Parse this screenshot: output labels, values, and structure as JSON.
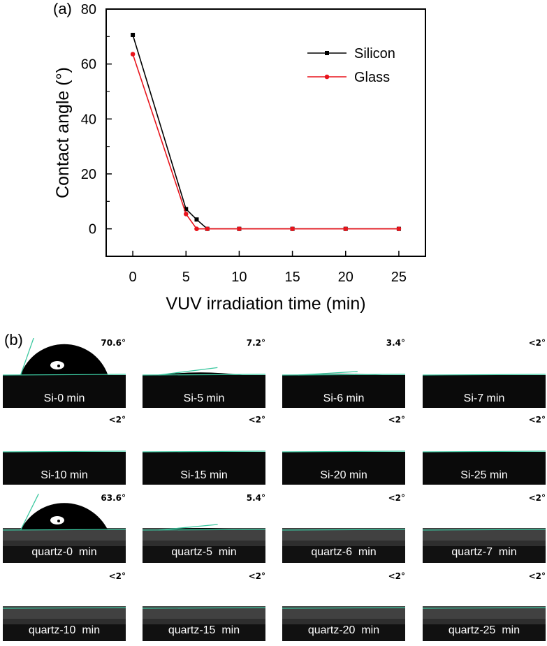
{
  "panel_a_label": "(a)",
  "panel_b_label": "(b)",
  "chart_data": {
    "type": "line",
    "title": "",
    "xlabel": "VUV irradiation time (min)",
    "ylabel": "Contact angle (°)",
    "xlim": [
      -2.5,
      27.5
    ],
    "ylim": [
      -10,
      80
    ],
    "xticks": [
      0,
      5,
      10,
      15,
      20,
      25
    ],
    "yticks": [
      0,
      20,
      40,
      60,
      80
    ],
    "legend_position": "top-right",
    "series": [
      {
        "name": "Silicon",
        "color": "#000000",
        "marker": "square",
        "x": [
          0,
          5,
          6,
          7,
          10,
          15,
          20,
          25
        ],
        "y": [
          70.6,
          7.2,
          3.4,
          0,
          0,
          0,
          0,
          0
        ]
      },
      {
        "name": "Glass",
        "color": "#e8141c",
        "marker": "circle",
        "x": [
          0,
          5,
          6,
          7,
          10,
          15,
          20,
          25
        ],
        "y": [
          63.6,
          5.4,
          0,
          0,
          0,
          0,
          0,
          0
        ]
      }
    ]
  },
  "images": [
    {
      "caption": "Si-0 min",
      "angle": "70.6°",
      "angle_deg": 70.6,
      "substrate": "silicon"
    },
    {
      "caption": "Si-5 min",
      "angle": "7.2°",
      "angle_deg": 7.2,
      "substrate": "silicon"
    },
    {
      "caption": "Si-6 min",
      "angle": "3.4°",
      "angle_deg": 3.4,
      "substrate": "silicon"
    },
    {
      "caption": "Si-7 min",
      "angle": "<2°",
      "angle_deg": 0,
      "substrate": "silicon"
    },
    {
      "caption": "Si-10 min",
      "angle": "<2°",
      "angle_deg": 0,
      "substrate": "silicon"
    },
    {
      "caption": "Si-15 min",
      "angle": "<2°",
      "angle_deg": 0,
      "substrate": "silicon"
    },
    {
      "caption": "Si-20 min",
      "angle": "<2°",
      "angle_deg": 0,
      "substrate": "silicon"
    },
    {
      "caption": "Si-25 min",
      "angle": "<2°",
      "angle_deg": 0,
      "substrate": "silicon"
    },
    {
      "caption": "quartz-0  min",
      "angle": "63.6°",
      "angle_deg": 63.6,
      "substrate": "quartz"
    },
    {
      "caption": "quartz-5  min",
      "angle": "5.4°",
      "angle_deg": 5.4,
      "substrate": "quartz"
    },
    {
      "caption": "quartz-6  min",
      "angle": "<2°",
      "angle_deg": 0,
      "substrate": "quartz"
    },
    {
      "caption": "quartz-7  min",
      "angle": "<2°",
      "angle_deg": 0,
      "substrate": "quartz"
    },
    {
      "caption": "quartz-10  min",
      "angle": "<2°",
      "angle_deg": 0,
      "substrate": "quartz"
    },
    {
      "caption": "quartz-15  min",
      "angle": "<2°",
      "angle_deg": 0,
      "substrate": "quartz"
    },
    {
      "caption": "quartz-20  min",
      "angle": "<2°",
      "angle_deg": 0,
      "substrate": "quartz"
    },
    {
      "caption": "quartz-25  min",
      "angle": "<2°",
      "angle_deg": 0,
      "substrate": "quartz"
    }
  ],
  "colors": {
    "silicon_substrate": "#0a0a0a",
    "quartz_substrate": "#2e2e2e",
    "tangent_line": "#3cc8a0"
  }
}
